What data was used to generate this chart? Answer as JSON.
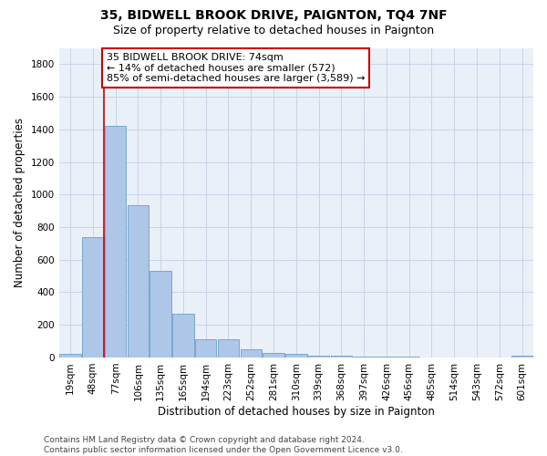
{
  "title": "35, BIDWELL BROOK DRIVE, PAIGNTON, TQ4 7NF",
  "subtitle": "Size of property relative to detached houses in Paignton",
  "xlabel": "Distribution of detached houses by size in Paignton",
  "ylabel": "Number of detached properties",
  "categories": [
    "19sqm",
    "48sqm",
    "77sqm",
    "106sqm",
    "135sqm",
    "165sqm",
    "194sqm",
    "223sqm",
    "252sqm",
    "281sqm",
    "310sqm",
    "339sqm",
    "368sqm",
    "397sqm",
    "426sqm",
    "456sqm",
    "485sqm",
    "514sqm",
    "543sqm",
    "572sqm",
    "601sqm"
  ],
  "values": [
    20,
    740,
    1420,
    935,
    530,
    270,
    112,
    110,
    50,
    30,
    20,
    10,
    12,
    8,
    5,
    3,
    2,
    2,
    1,
    1,
    10
  ],
  "bar_color": "#aec6e8",
  "bar_edge_color": "#6a9fc8",
  "vline_x_index": 2,
  "vline_color": "#cc0000",
  "annotation_text": "35 BIDWELL BROOK DRIVE: 74sqm\n← 14% of detached houses are smaller (572)\n85% of semi-detached houses are larger (3,589) →",
  "annotation_box_color": "#ffffff",
  "annotation_box_edge": "#cc0000",
  "ylim": [
    0,
    1900
  ],
  "yticks": [
    0,
    200,
    400,
    600,
    800,
    1000,
    1200,
    1400,
    1600,
    1800
  ],
  "footer": "Contains HM Land Registry data © Crown copyright and database right 2024.\nContains public sector information licensed under the Open Government Licence v3.0.",
  "bg_color": "#ffffff",
  "plot_bg_color": "#eaf0f8",
  "grid_color": "#c8d4e8",
  "title_fontsize": 10,
  "subtitle_fontsize": 9,
  "axis_label_fontsize": 8.5,
  "tick_fontsize": 7.5,
  "annotation_fontsize": 8,
  "footer_fontsize": 6.5
}
